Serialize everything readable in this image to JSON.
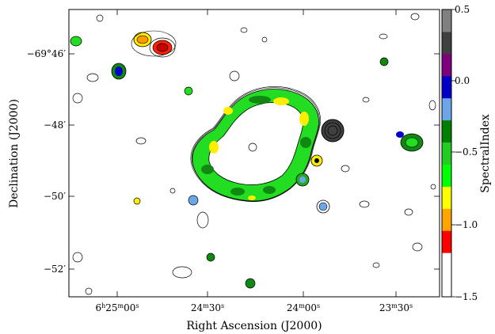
{
  "figure": {
    "xlabel": "Right Ascension (J2000)",
    "ylabel": "Declination (J2000)",
    "colorbar_label": "SpectralIndex"
  },
  "ra_ticks": [
    {
      "h": "6",
      "m": "25",
      "s": "00",
      "label_part": "6h25m00s"
    },
    {
      "m": "24",
      "s": "30"
    },
    {
      "m": "24",
      "s": "00"
    },
    {
      "m": "23",
      "s": "30"
    }
  ],
  "dec_ticks": [
    "−69°46′",
    "−48′",
    "−50′",
    "−52′"
  ],
  "colorbar": {
    "ticks": [
      "0.5",
      "0.0",
      "−0.5",
      "−1.0",
      "−1.5"
    ],
    "colors": [
      "#ffffff",
      "#ffffff",
      "#ff0000",
      "#ffa500",
      "#ffff00",
      "#00ff00",
      "#22cc22",
      "#008000",
      "#6ca6e8",
      "#0000c8",
      "#7f007f",
      "#404040",
      "#808080"
    ]
  }
}
